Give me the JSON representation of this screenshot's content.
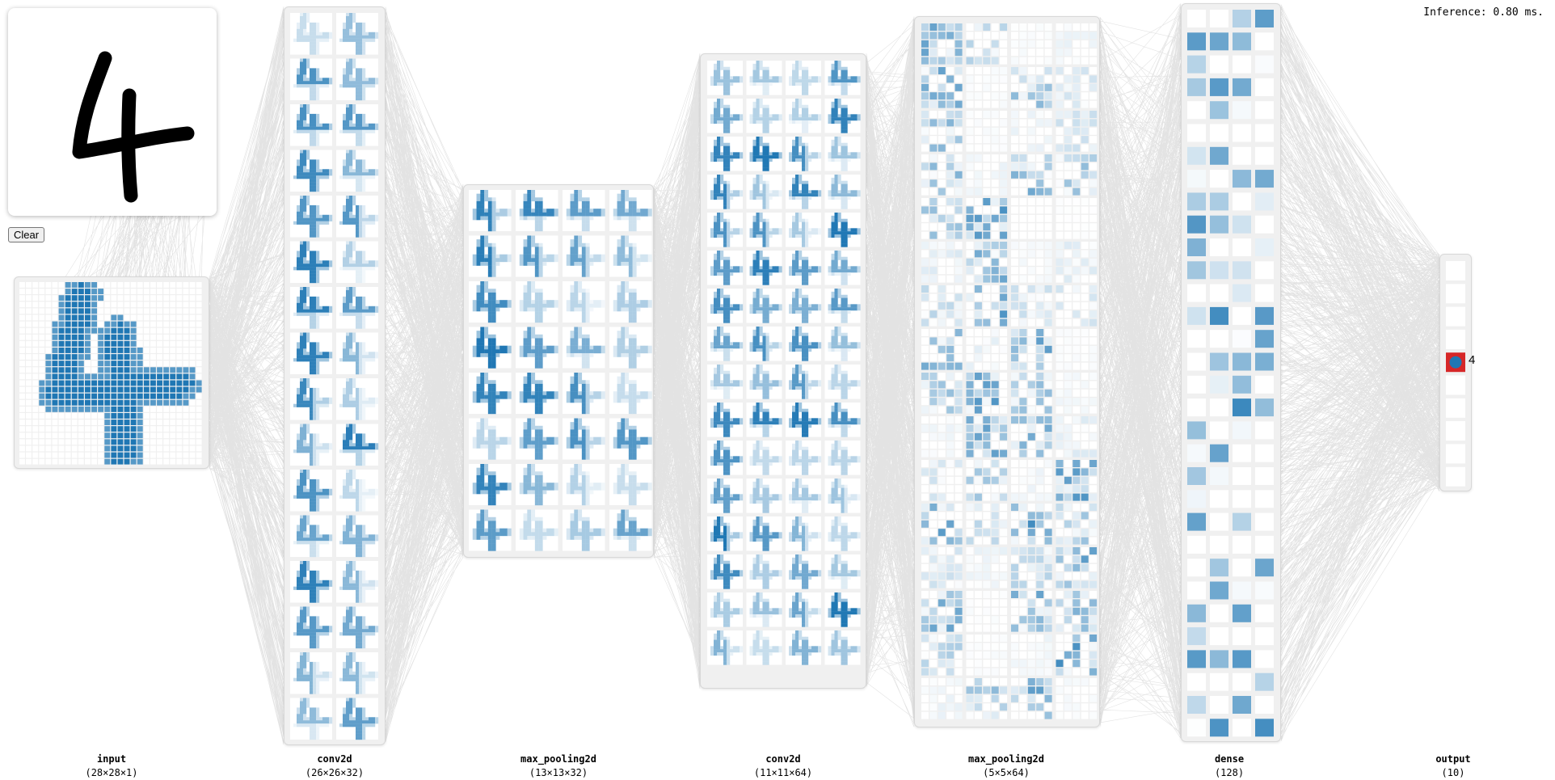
{
  "header": {
    "inference": "Inference: 0.80 ms."
  },
  "drawing": {
    "digit": "4",
    "clear_label": "Clear"
  },
  "layers": [
    {
      "name": "input",
      "shape": "(28×28×1)"
    },
    {
      "name": "conv2d",
      "shape": "(26×26×32)"
    },
    {
      "name": "max_pooling2d",
      "shape": "(13×13×32)"
    },
    {
      "name": "conv2d",
      "shape": "(11×11×64)"
    },
    {
      "name": "max_pooling2d",
      "shape": "(5×5×64)"
    },
    {
      "name": "dense",
      "shape": "(128)"
    },
    {
      "name": "output",
      "shape": "(10)"
    }
  ],
  "output": {
    "predicted_label": "4",
    "predicted_index": 4,
    "num_classes": 10
  },
  "colors": {
    "activation": "#1f77b4",
    "panel": "#f0f0f0",
    "wire": "#9a9a9a",
    "predicted": "#d62728"
  }
}
